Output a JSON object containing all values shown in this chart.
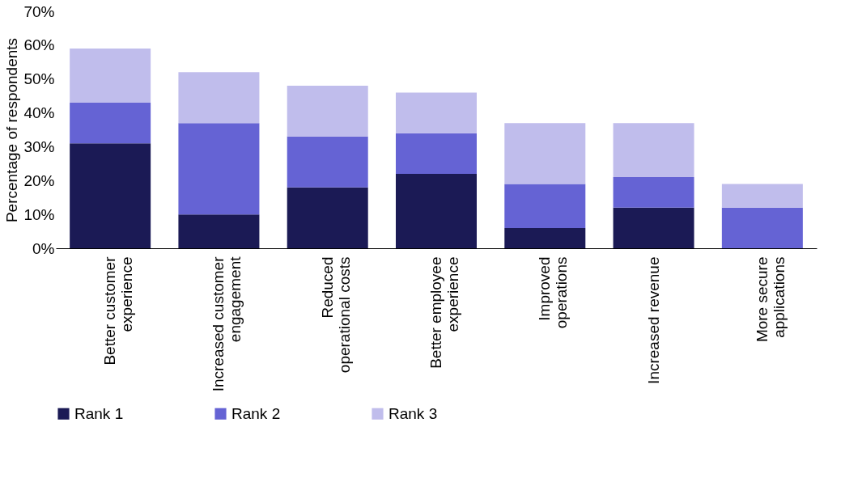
{
  "chart_data": {
    "type": "bar",
    "stacked": true,
    "ylabel": "Percentage of respondents",
    "categories": [
      "Better customer experience",
      "Increased customer engagement",
      "Reduced operational costs",
      "Better employee experience",
      "Improved operations",
      "Increased revenue",
      "More secure applications"
    ],
    "series": [
      {
        "name": "Rank 1",
        "color": "#1b1a55",
        "values": [
          31,
          10,
          18,
          22,
          6,
          12,
          0
        ]
      },
      {
        "name": "Rank 2",
        "color": "#6563d4",
        "values": [
          12,
          27,
          15,
          12,
          13,
          9,
          12
        ]
      },
      {
        "name": "Rank 3",
        "color": "#c0bdec",
        "values": [
          16,
          15,
          15,
          12,
          18,
          16,
          7
        ]
      }
    ],
    "ylim": [
      0,
      70
    ],
    "yticks": [
      {
        "value": 0,
        "label": "0%"
      },
      {
        "value": 10,
        "label": "10%"
      },
      {
        "value": 20,
        "label": "20%"
      },
      {
        "value": 30,
        "label": "30%"
      },
      {
        "value": 40,
        "label": "40%"
      },
      {
        "value": 50,
        "label": "50%"
      },
      {
        "value": 60,
        "label": "60%"
      },
      {
        "value": 70,
        "label": "70%"
      }
    ],
    "grid": false,
    "legend": "bottom"
  }
}
